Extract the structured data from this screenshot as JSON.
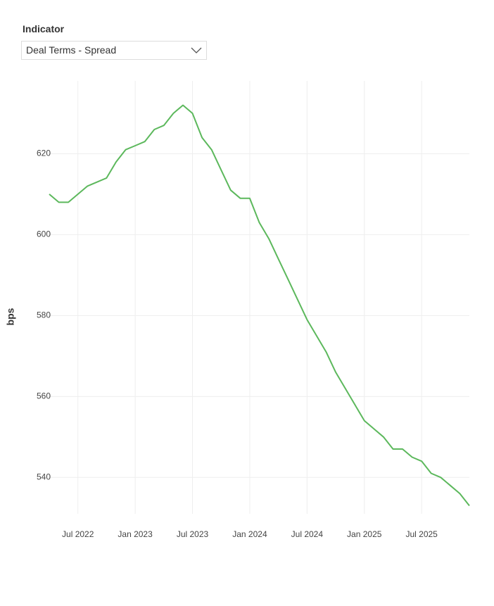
{
  "filter": {
    "label": "Indicator",
    "selected": "Deal Terms - Spread"
  },
  "chart_data": {
    "type": "line",
    "ylabel": "bps",
    "x": [
      "2022-04",
      "2022-05",
      "2022-06",
      "2022-07",
      "2022-08",
      "2022-09",
      "2022-10",
      "2022-11",
      "2022-12",
      "2023-01",
      "2023-02",
      "2023-03",
      "2023-04",
      "2023-05",
      "2023-06",
      "2023-07",
      "2023-08",
      "2023-09",
      "2023-10",
      "2023-11",
      "2023-12",
      "2024-01",
      "2024-02",
      "2024-03",
      "2024-04",
      "2024-05",
      "2024-06",
      "2024-07",
      "2024-08",
      "2024-09",
      "2024-10",
      "2024-11",
      "2024-12",
      "2025-01",
      "2025-02",
      "2025-03",
      "2025-04",
      "2025-05",
      "2025-06",
      "2025-07",
      "2025-08",
      "2025-09",
      "2025-10",
      "2025-11",
      "2025-12"
    ],
    "series": [
      {
        "name": "Deal Terms - Spread",
        "color": "#5cb85c",
        "values": [
          610,
          608,
          608,
          610,
          612,
          613,
          614,
          618,
          621,
          622,
          623,
          626,
          627,
          630,
          632,
          630,
          624,
          621,
          616,
          611,
          609,
          609,
          603,
          599,
          594,
          589,
          584,
          579,
          575,
          571,
          566,
          562,
          558,
          554,
          552,
          550,
          547,
          547,
          545,
          544,
          541,
          540,
          538,
          536,
          533
        ]
      }
    ],
    "xlim": [
      "2022-04",
      "2025-12"
    ],
    "xticks": [
      {
        "value": "2022-07",
        "label": "Jul 2022"
      },
      {
        "value": "2023-01",
        "label": "Jan 2023"
      },
      {
        "value": "2023-07",
        "label": "Jul 2023"
      },
      {
        "value": "2024-01",
        "label": "Jan 2024"
      },
      {
        "value": "2024-07",
        "label": "Jul 2024"
      },
      {
        "value": "2025-01",
        "label": "Jan 2025"
      },
      {
        "value": "2025-07",
        "label": "Jul 2025"
      }
    ],
    "ylim": [
      531,
      638
    ],
    "yticks": [
      540,
      560,
      580,
      600,
      620
    ],
    "grid": true
  }
}
